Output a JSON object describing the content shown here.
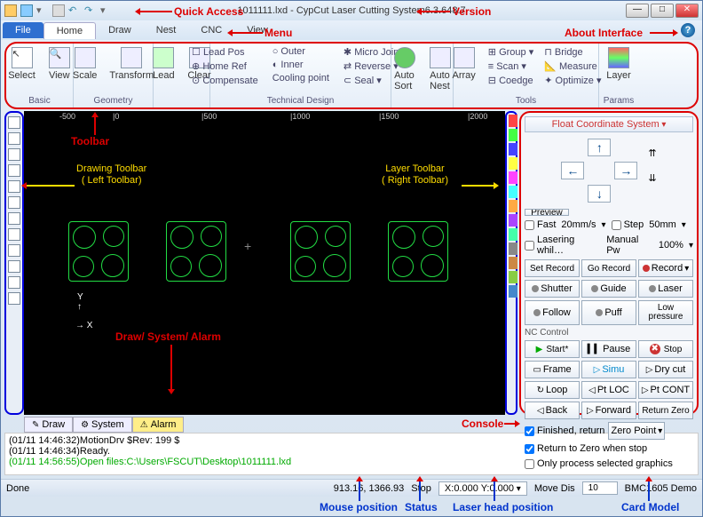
{
  "title": {
    "file": "1011111.lxd",
    "app": "CypCut Laser Cutting System",
    "version": "6.3.648.7"
  },
  "menu": {
    "file": "File",
    "home": "Home",
    "draw": "Draw",
    "nest": "Nest",
    "cnc": "CNC",
    "view": "View"
  },
  "ribbon": {
    "basic": {
      "label": "Basic",
      "select": "Select",
      "view": "View"
    },
    "geometry": {
      "label": "Geometry",
      "scale": "Scale",
      "transform": "Transform"
    },
    "lead": {
      "lead": "Lead",
      "clear": "Clear"
    },
    "tech": {
      "label": "Technical Design",
      "leadpos": "Lead Pos",
      "homeref": "Home Ref",
      "compensate": "Compensate",
      "outer": "Outer",
      "inner": "Inner",
      "cooling": "Cooling point",
      "micro": "Micro Joint",
      "reverse": "Reverse",
      "seal": "Seal"
    },
    "sort": {
      "autosort": "Auto\nSort",
      "autonest": "Auto\nNest"
    },
    "tools": {
      "label": "Tools",
      "array": "Array",
      "group": "Group",
      "scan": "Scan",
      "coedge": "Coedge",
      "bridge": "Bridge",
      "measure": "Measure",
      "optimize": "Optimize"
    },
    "params": {
      "label": "Params",
      "layer": "Layer"
    }
  },
  "ruler": {
    "t1": "-500",
    "t2": "|0",
    "t3": "|500",
    "t4": "|1000",
    "t5": "|1500",
    "t6": "|2000"
  },
  "layercolors": [
    "#f44",
    "#4f4",
    "#44f",
    "#ff4",
    "#f4f",
    "#4ff",
    "#fa4",
    "#a4f",
    "#4fa",
    "#888",
    "#c84",
    "#8c4",
    "#48c"
  ],
  "console": {
    "header": "Float Coordinate System",
    "preview": "Preview",
    "fast": "Fast",
    "fastv": "20mm/s",
    "step": "Step",
    "stepv": "50mm",
    "lasering": "Lasering whil…",
    "manual": "Manual Pw",
    "manualv": "100%",
    "setrec": "Set Record",
    "gorec": "Go Record",
    "record": "Record",
    "shutter": "Shutter",
    "guide": "Guide",
    "laser": "Laser",
    "follow": "Follow",
    "puff": "Puff",
    "lowp": "Low\npressure",
    "nclabel": "NC Control",
    "start": "Start*",
    "pause": "Pause",
    "stop": "Stop",
    "frame": "Frame",
    "simu": "Simu",
    "drycut": "Dry cut",
    "loop": "Loop",
    "ptloc": "Pt LOC",
    "ptcont": "Pt CONT",
    "back": "Back",
    "forward": "Forward",
    "retzero": "Return Zero",
    "finret": "Finished, return",
    "zeropt": "Zero Point",
    "retstop": "Return to Zero when stop",
    "onlysel": "Only process selected graphics"
  },
  "tabs": {
    "draw": "Draw",
    "system": "System",
    "alarm": "Alarm"
  },
  "log": {
    "l1": "(01/11 14:46:32)MotionDrv $Rev: 199 $",
    "l2": "(01/11 14:46:34)Ready.",
    "l3": "(01/11 14:56:55)Open files:C:\\Users\\FSCUT\\Desktop\\1011111.lxd"
  },
  "status": {
    "done": "Done",
    "pos": "913.16, 1366.93",
    "stop": "Stop",
    "laserpos": "X:0.000 Y:0.000",
    "movedis": "Move Dis",
    "movedisv": "10",
    "card": "BMC1605 Demo"
  },
  "annot": {
    "quickaccess": "Quick Access",
    "version": "Version",
    "menu": "Menu",
    "about": "About Interface",
    "toolbar": "Toolbar",
    "drawtb": "Drawing Toolbar\n( Left Toolbar)",
    "layertb": "Layer Toolbar\n( Right Toolbar)",
    "dsa": "Draw/ System/ Alarm",
    "console": "Console",
    "mousepos": "Mouse position",
    "statuslbl": "Status",
    "laserhead": "Laser head position",
    "cardmodel": "Card Model"
  }
}
